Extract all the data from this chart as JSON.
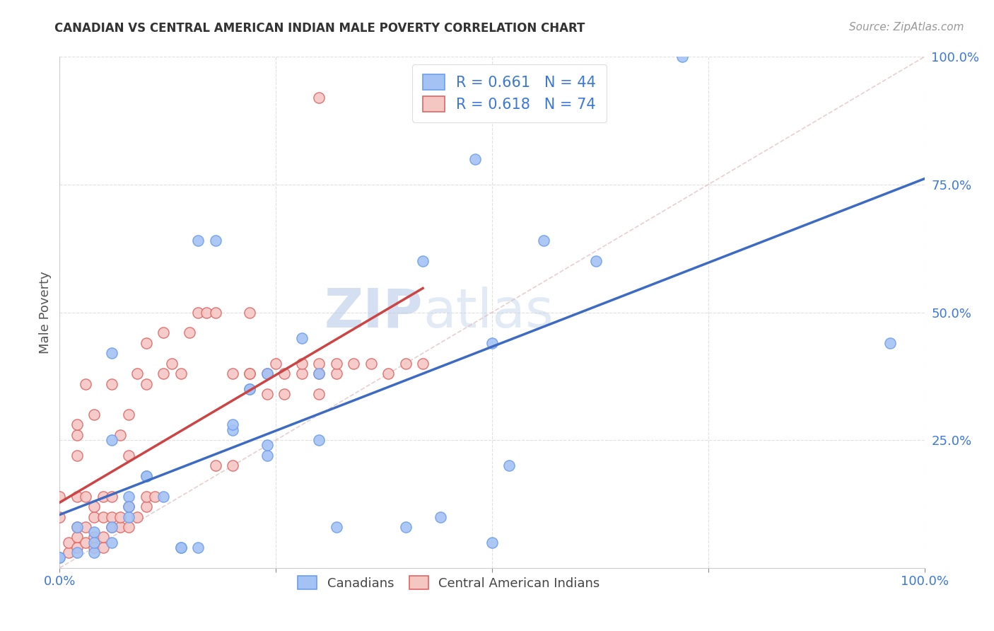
{
  "title": "CANADIAN VS CENTRAL AMERICAN INDIAN MALE POVERTY CORRELATION CHART",
  "source": "Source: ZipAtlas.com",
  "ylabel": "Male Poverty",
  "ytick_labels": [
    "100.0%",
    "75.0%",
    "50.0%",
    "25.0%"
  ],
  "ytick_values": [
    1.0,
    0.75,
    0.5,
    0.25
  ],
  "watermark_zip": "ZIP",
  "watermark_atlas": "atlas",
  "blue_R": 0.661,
  "blue_N": 44,
  "pink_R": 0.618,
  "pink_N": 74,
  "blue_color": "#a4c2f4",
  "pink_color": "#f4c7c3",
  "blue_edge_color": "#6d9eeb",
  "pink_edge_color": "#e06666",
  "blue_line_color": "#3d6bc4",
  "pink_line_color": "#cc4444",
  "diag_line_color": "#cccccc",
  "axis_color": "#3c78d8",
  "legend_text_color": "#3c78d8",
  "blue_scatter_x": [
    0.48,
    0.72,
    0.0,
    0.18,
    0.02,
    0.04,
    0.06,
    0.08,
    0.06,
    0.06,
    0.1,
    0.14,
    0.16,
    0.2,
    0.22,
    0.24,
    0.24,
    0.28,
    0.3,
    0.32,
    0.4,
    0.42,
    0.44,
    0.5,
    0.5,
    0.52,
    0.56,
    0.62,
    0.96,
    0.02,
    0.04,
    0.06,
    0.08,
    0.1,
    0.12,
    0.14,
    0.16,
    0.2,
    0.22,
    0.24,
    0.3,
    0.0,
    0.08,
    0.04
  ],
  "blue_scatter_y": [
    0.8,
    1.0,
    0.02,
    0.64,
    0.03,
    0.03,
    0.05,
    0.1,
    0.25,
    0.42,
    0.18,
    0.04,
    0.64,
    0.27,
    0.35,
    0.22,
    0.38,
    0.45,
    0.38,
    0.08,
    0.08,
    0.6,
    0.1,
    0.44,
    0.05,
    0.2,
    0.64,
    0.6,
    0.44,
    0.08,
    0.07,
    0.08,
    0.14,
    0.18,
    0.14,
    0.04,
    0.04,
    0.28,
    0.35,
    0.24,
    0.25,
    0.02,
    0.12,
    0.05
  ],
  "pink_scatter_x": [
    0.3,
    0.0,
    0.0,
    0.01,
    0.01,
    0.02,
    0.02,
    0.02,
    0.02,
    0.02,
    0.02,
    0.02,
    0.03,
    0.03,
    0.03,
    0.03,
    0.04,
    0.04,
    0.04,
    0.04,
    0.04,
    0.05,
    0.05,
    0.05,
    0.05,
    0.06,
    0.06,
    0.06,
    0.06,
    0.07,
    0.07,
    0.07,
    0.08,
    0.08,
    0.08,
    0.08,
    0.09,
    0.09,
    0.1,
    0.1,
    0.1,
    0.1,
    0.11,
    0.12,
    0.12,
    0.13,
    0.14,
    0.15,
    0.16,
    0.17,
    0.18,
    0.18,
    0.2,
    0.2,
    0.22,
    0.22,
    0.22,
    0.24,
    0.24,
    0.25,
    0.26,
    0.26,
    0.28,
    0.28,
    0.3,
    0.3,
    0.3,
    0.32,
    0.32,
    0.34,
    0.36,
    0.38,
    0.4,
    0.42
  ],
  "pink_scatter_y": [
    0.92,
    0.1,
    0.14,
    0.03,
    0.05,
    0.04,
    0.06,
    0.08,
    0.14,
    0.22,
    0.26,
    0.28,
    0.05,
    0.08,
    0.14,
    0.36,
    0.04,
    0.06,
    0.1,
    0.12,
    0.3,
    0.04,
    0.06,
    0.1,
    0.14,
    0.08,
    0.1,
    0.14,
    0.36,
    0.08,
    0.1,
    0.26,
    0.08,
    0.12,
    0.22,
    0.3,
    0.1,
    0.38,
    0.12,
    0.14,
    0.36,
    0.44,
    0.14,
    0.38,
    0.46,
    0.4,
    0.38,
    0.46,
    0.5,
    0.5,
    0.5,
    0.2,
    0.2,
    0.38,
    0.38,
    0.38,
    0.5,
    0.34,
    0.38,
    0.4,
    0.34,
    0.38,
    0.38,
    0.4,
    0.34,
    0.38,
    0.4,
    0.38,
    0.4,
    0.4,
    0.4,
    0.38,
    0.4,
    0.4
  ],
  "background_color": "#ffffff",
  "grid_color": "#e0e0e0"
}
